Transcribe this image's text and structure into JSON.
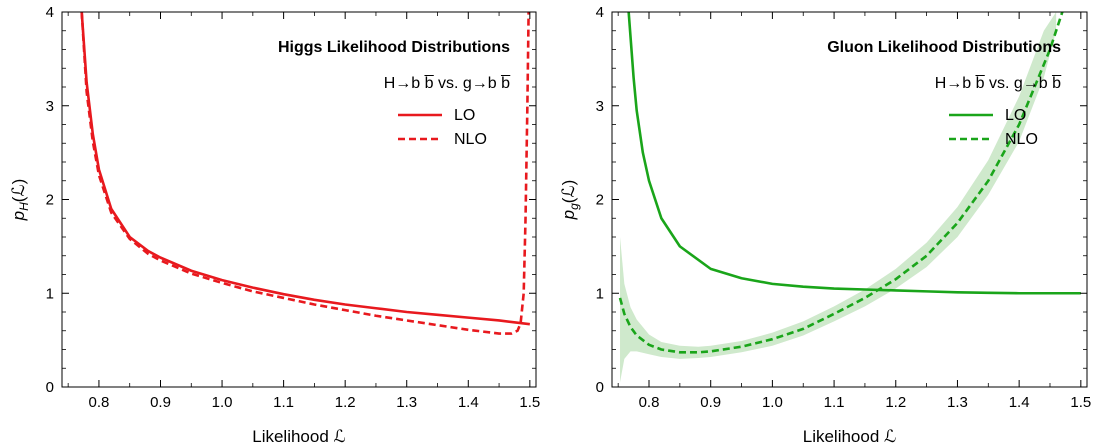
{
  "chart_data": [
    {
      "type": "line",
      "title": "Higgs Likelihood Distributions",
      "subtitle": "H→b b̅ vs. g→b b̅",
      "xlabel": "Likelihood ℒ",
      "ylabel": "p_H(ℒ)",
      "ylabel_parts": {
        "base": "p",
        "sub": "H",
        "rest": "(ℒ)"
      },
      "xlim": [
        0.74,
        1.51
      ],
      "ylim": [
        0,
        4
      ],
      "xticks": [
        "0.8",
        "0.9",
        "1.0",
        "1.1",
        "1.2",
        "1.3",
        "1.4",
        "1.5"
      ],
      "yticks": [
        "0",
        "1",
        "2",
        "3",
        "4"
      ],
      "grid": false,
      "legend_position": "top-right",
      "color": "#e8191e",
      "series": [
        {
          "name": "LO",
          "style": "solid",
          "x": [
            0.772,
            0.78,
            0.79,
            0.8,
            0.82,
            0.85,
            0.88,
            0.9,
            0.95,
            1.0,
            1.05,
            1.1,
            1.15,
            1.2,
            1.25,
            1.3,
            1.35,
            1.4,
            1.45,
            1.5
          ],
          "y": [
            4.0,
            3.25,
            2.7,
            2.32,
            1.9,
            1.6,
            1.45,
            1.38,
            1.24,
            1.14,
            1.06,
            0.99,
            0.93,
            0.88,
            0.84,
            0.8,
            0.77,
            0.74,
            0.71,
            0.67
          ]
        },
        {
          "name": "NLO",
          "style": "dashed",
          "x": [
            0.772,
            0.78,
            0.79,
            0.8,
            0.82,
            0.85,
            0.88,
            0.9,
            0.95,
            1.0,
            1.05,
            1.1,
            1.15,
            1.2,
            1.25,
            1.3,
            1.35,
            1.4,
            1.45,
            1.47,
            1.48,
            1.485,
            1.49,
            1.493,
            1.496,
            1.498
          ],
          "y": [
            4.0,
            3.15,
            2.62,
            2.26,
            1.86,
            1.58,
            1.42,
            1.35,
            1.21,
            1.11,
            1.02,
            0.95,
            0.88,
            0.82,
            0.76,
            0.71,
            0.66,
            0.61,
            0.57,
            0.57,
            0.6,
            0.68,
            1.0,
            1.8,
            3.0,
            4.0
          ]
        }
      ],
      "bands": []
    },
    {
      "type": "line",
      "title": "Gluon Likelihood Distributions",
      "subtitle": "H→b b̅ vs. g→b b̅",
      "xlabel": "Likelihood ℒ",
      "ylabel": "p_g(ℒ)",
      "ylabel_parts": {
        "base": "p",
        "sub": "g",
        "rest": "(ℒ)"
      },
      "xlim": [
        0.74,
        1.51
      ],
      "ylim": [
        0,
        4
      ],
      "xticks": [
        "0.8",
        "0.9",
        "1.0",
        "1.1",
        "1.2",
        "1.3",
        "1.4",
        "1.5"
      ],
      "yticks": [
        "0",
        "1",
        "2",
        "3",
        "4"
      ],
      "grid": false,
      "legend_position": "top-right",
      "color": "#1aa51a",
      "band_color": "#cfe9cc",
      "series": [
        {
          "name": "LO",
          "style": "solid",
          "x": [
            0.767,
            0.775,
            0.78,
            0.79,
            0.8,
            0.82,
            0.85,
            0.9,
            0.95,
            1.0,
            1.05,
            1.1,
            1.15,
            1.2,
            1.25,
            1.3,
            1.35,
            1.4,
            1.45,
            1.5
          ],
          "y": [
            4.0,
            3.3,
            2.95,
            2.5,
            2.2,
            1.8,
            1.5,
            1.26,
            1.16,
            1.1,
            1.07,
            1.05,
            1.04,
            1.03,
            1.02,
            1.01,
            1.005,
            1.0,
            1.0,
            1.0
          ]
        },
        {
          "name": "NLO",
          "style": "dashed",
          "x": [
            0.753,
            0.76,
            0.77,
            0.78,
            0.8,
            0.82,
            0.85,
            0.88,
            0.9,
            0.95,
            1.0,
            1.05,
            1.1,
            1.15,
            1.2,
            1.25,
            1.3,
            1.35,
            1.4,
            1.45,
            1.47
          ],
          "y": [
            0.95,
            0.78,
            0.64,
            0.55,
            0.45,
            0.4,
            0.37,
            0.37,
            0.38,
            0.43,
            0.51,
            0.62,
            0.78,
            0.95,
            1.15,
            1.4,
            1.75,
            2.2,
            2.8,
            3.6,
            4.0
          ]
        }
      ],
      "bands": [
        {
          "series": "NLO",
          "x": [
            0.753,
            0.76,
            0.77,
            0.78,
            0.8,
            0.82,
            0.85,
            0.88,
            0.9,
            0.95,
            1.0,
            1.05,
            1.1,
            1.15,
            1.2,
            1.25,
            1.3,
            1.35,
            1.4,
            1.44,
            1.46
          ],
          "lower": [
            0.05,
            0.3,
            0.38,
            0.38,
            0.35,
            0.32,
            0.3,
            0.31,
            0.32,
            0.37,
            0.44,
            0.55,
            0.7,
            0.86,
            1.05,
            1.28,
            1.6,
            2.05,
            2.62,
            3.3,
            3.8
          ],
          "upper": [
            1.6,
            1.1,
            0.85,
            0.72,
            0.56,
            0.48,
            0.44,
            0.43,
            0.44,
            0.49,
            0.58,
            0.7,
            0.86,
            1.04,
            1.26,
            1.54,
            1.92,
            2.42,
            3.1,
            3.8,
            4.0
          ]
        }
      ]
    }
  ]
}
